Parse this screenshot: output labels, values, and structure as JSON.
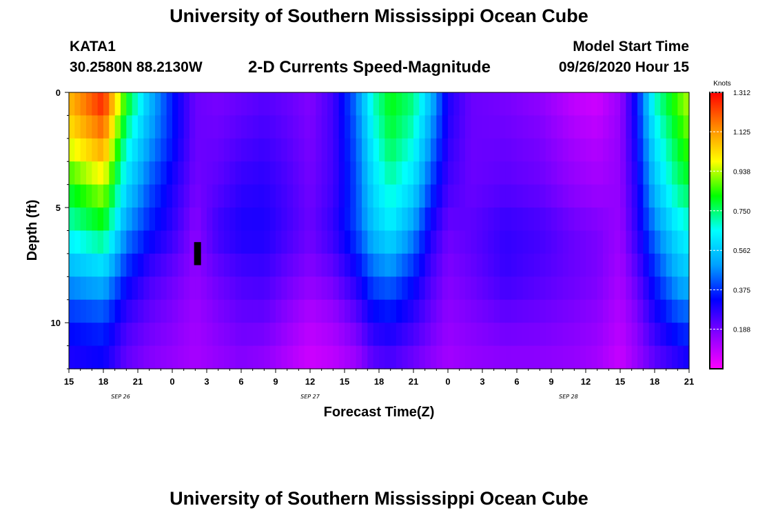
{
  "header": {
    "title": "University of Southern Mississippi Ocean Cube",
    "station_id": "KATA1",
    "coordinates": "30.2580N 88.2130W",
    "subtitle": "2-D Currents Speed-Magnitude",
    "model_start_label": "Model Start Time",
    "model_start_value": "09/26/2020 Hour 15"
  },
  "footer": {
    "title": "University of Southern Mississippi Ocean Cube"
  },
  "chart_data": {
    "type": "heatmap",
    "title": "2-D Currents Speed-Magnitude",
    "xlabel": "Forecast Time(Z)",
    "ylabel": "Depth (ft)",
    "x_range_hours": [
      0,
      54
    ],
    "x_ticks": [
      {
        "hour": 0,
        "label": "15"
      },
      {
        "hour": 3,
        "label": "18"
      },
      {
        "hour": 6,
        "label": "21"
      },
      {
        "hour": 9,
        "label": "0"
      },
      {
        "hour": 12,
        "label": "3"
      },
      {
        "hour": 15,
        "label": "6"
      },
      {
        "hour": 18,
        "label": "9"
      },
      {
        "hour": 21,
        "label": "12"
      },
      {
        "hour": 24,
        "label": "15"
      },
      {
        "hour": 27,
        "label": "18"
      },
      {
        "hour": 30,
        "label": "21"
      },
      {
        "hour": 33,
        "label": "0"
      },
      {
        "hour": 36,
        "label": "3"
      },
      {
        "hour": 39,
        "label": "6"
      },
      {
        "hour": 42,
        "label": "9"
      },
      {
        "hour": 45,
        "label": "12"
      },
      {
        "hour": 48,
        "label": "15"
      },
      {
        "hour": 51,
        "label": "18"
      },
      {
        "hour": 54,
        "label": "21"
      }
    ],
    "date_labels": [
      {
        "hour": 4.5,
        "label": "SEP 26"
      },
      {
        "hour": 21,
        "label": "SEP 27"
      },
      {
        "hour": 43.5,
        "label": "SEP 28"
      }
    ],
    "y_range_ft": [
      0,
      12
    ],
    "y_ticks": [
      {
        "value": 0,
        "label": "0"
      },
      {
        "value": 5,
        "label": "5"
      },
      {
        "value": 10,
        "label": "10"
      }
    ],
    "colorbar": {
      "unit": "Knots",
      "min": 0,
      "max": 1.312,
      "tick_labels": [
        "1.312",
        "1.125",
        "0.938",
        "0.750",
        "0.562",
        "0.375",
        "0.188"
      ],
      "tick_values": [
        1.312,
        1.125,
        0.938,
        0.75,
        0.562,
        0.375,
        0.188
      ],
      "colors": [
        "#ff00ff",
        "#8800ff",
        "#0000ff",
        "#00a0ff",
        "#00ffff",
        "#00ff00",
        "#ffff00",
        "#ff8800",
        "#ff0000"
      ]
    },
    "depth_profile_ft": [
      0,
      2,
      4,
      6,
      8,
      10,
      12
    ],
    "speed_keyframes": [
      {
        "hour": 0,
        "speeds": [
          1.1,
          1.0,
          0.82,
          0.68,
          0.5,
          0.35,
          0.28
        ]
      },
      {
        "hour": 3,
        "speeds": [
          1.3,
          1.15,
          0.95,
          0.78,
          0.55,
          0.38,
          0.3
        ]
      },
      {
        "hour": 5,
        "speeds": [
          0.85,
          0.7,
          0.6,
          0.48,
          0.35,
          0.25,
          0.2
        ]
      },
      {
        "hour": 7,
        "speeds": [
          0.55,
          0.5,
          0.42,
          0.35,
          0.25,
          0.2,
          0.16
        ]
      },
      {
        "hour": 9,
        "speeds": [
          0.35,
          0.35,
          0.3,
          0.27,
          0.2,
          0.17,
          0.14
        ]
      },
      {
        "hour": 11,
        "speeds": [
          0.2,
          0.2,
          0.19,
          0.16,
          0.15,
          0.13,
          0.12
        ]
      },
      {
        "hour": 13,
        "speeds": [
          0.18,
          0.2,
          0.22,
          0.26,
          0.2,
          0.17,
          0.14
        ]
      },
      {
        "hour": 15,
        "speeds": [
          0.2,
          0.23,
          0.27,
          0.3,
          0.24,
          0.2,
          0.16
        ]
      },
      {
        "hour": 17,
        "speeds": [
          0.22,
          0.25,
          0.28,
          0.3,
          0.25,
          0.2,
          0.14
        ]
      },
      {
        "hour": 19,
        "speeds": [
          0.2,
          0.22,
          0.24,
          0.25,
          0.2,
          0.15,
          0.1
        ]
      },
      {
        "hour": 21,
        "speeds": [
          0.17,
          0.18,
          0.19,
          0.2,
          0.16,
          0.1,
          0.06
        ]
      },
      {
        "hour": 23,
        "speeds": [
          0.25,
          0.25,
          0.25,
          0.27,
          0.2,
          0.13,
          0.08
        ]
      },
      {
        "hour": 25,
        "speeds": [
          0.45,
          0.42,
          0.4,
          0.4,
          0.3,
          0.2,
          0.12
        ]
      },
      {
        "hour": 26.5,
        "speeds": [
          0.7,
          0.65,
          0.6,
          0.55,
          0.42,
          0.3,
          0.2
        ]
      },
      {
        "hour": 28,
        "speeds": [
          0.82,
          0.78,
          0.7,
          0.62,
          0.45,
          0.32,
          0.22
        ]
      },
      {
        "hour": 30,
        "speeds": [
          0.75,
          0.68,
          0.6,
          0.48,
          0.35,
          0.26,
          0.18
        ]
      },
      {
        "hour": 31.5,
        "speeds": [
          0.55,
          0.48,
          0.4,
          0.3,
          0.24,
          0.2,
          0.15
        ]
      },
      {
        "hour": 33,
        "speeds": [
          0.3,
          0.28,
          0.25,
          0.2,
          0.17,
          0.15,
          0.12
        ]
      },
      {
        "hour": 35,
        "speeds": [
          0.2,
          0.2,
          0.2,
          0.22,
          0.2,
          0.17,
          0.14
        ]
      },
      {
        "hour": 38,
        "speeds": [
          0.18,
          0.2,
          0.22,
          0.27,
          0.26,
          0.2,
          0.15
        ]
      },
      {
        "hour": 41,
        "speeds": [
          0.15,
          0.18,
          0.2,
          0.25,
          0.23,
          0.19,
          0.15
        ]
      },
      {
        "hour": 44,
        "speeds": [
          0.08,
          0.12,
          0.15,
          0.2,
          0.2,
          0.17,
          0.14
        ]
      },
      {
        "hour": 46,
        "speeds": [
          0.06,
          0.1,
          0.13,
          0.18,
          0.18,
          0.15,
          0.12
        ]
      },
      {
        "hour": 48,
        "speeds": [
          0.14,
          0.15,
          0.15,
          0.14,
          0.12,
          0.1,
          0.07
        ]
      },
      {
        "hour": 49.5,
        "speeds": [
          0.35,
          0.33,
          0.3,
          0.28,
          0.22,
          0.17,
          0.14
        ]
      },
      {
        "hour": 51,
        "speeds": [
          0.7,
          0.62,
          0.55,
          0.45,
          0.36,
          0.28,
          0.2
        ]
      },
      {
        "hour": 53,
        "speeds": [
          0.88,
          0.8,
          0.74,
          0.62,
          0.52,
          0.38,
          0.25
        ]
      },
      {
        "hour": 54,
        "speeds": [
          0.95,
          0.88,
          0.78,
          0.66,
          0.55,
          0.4,
          0.28
        ]
      }
    ],
    "missing_data": {
      "hour_range": [
        10.9,
        11.5
      ],
      "depth_range_ft": [
        6.5,
        7.5
      ]
    }
  }
}
